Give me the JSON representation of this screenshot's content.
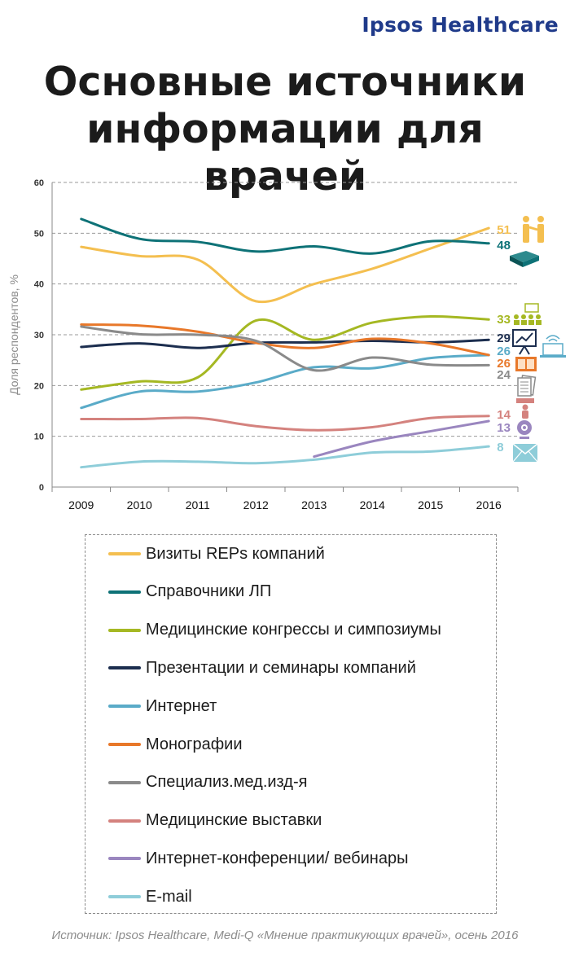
{
  "header": {
    "brand": "Ipsos Healthcare",
    "title_line1": "Основные источники",
    "title_line2": "информации для врачей"
  },
  "chart_data": {
    "type": "line",
    "x": [
      "2009",
      "2010",
      "2011",
      "2012",
      "2013",
      "2014",
      "2015",
      "2016"
    ],
    "ylabel": "Доля респондентов, %",
    "ylim": [
      0,
      60
    ],
    "yticks": [
      0,
      10,
      20,
      30,
      40,
      50,
      60
    ],
    "grid": true,
    "legend_position": "bottom",
    "series": [
      {
        "name": "Визиты REPs компаний",
        "color": "#f4bf50",
        "values": [
          47.3,
          45.5,
          44.8,
          36.6,
          40.0,
          43.0,
          47.0,
          51
        ],
        "end_label": "51",
        "icon": "handshake-icon"
      },
      {
        "name": "Справочники ЛП",
        "color": "#0e7277",
        "values": [
          52.8,
          48.9,
          48.3,
          46.4,
          47.4,
          46.0,
          48.4,
          48
        ],
        "end_label": "48",
        "icon": "book-icon"
      },
      {
        "name": "Медицинские конгрессы и симпозиумы",
        "color": "#a5b823",
        "values": [
          19.2,
          20.8,
          21.6,
          32.8,
          29.0,
          32.4,
          33.6,
          33
        ],
        "end_label": "33",
        "icon": "audience-icon"
      },
      {
        "name": "Презентации и семинары компаний",
        "color": "#1c2e4f",
        "values": [
          27.6,
          28.3,
          27.4,
          28.4,
          28.5,
          28.8,
          28.5,
          29
        ],
        "end_label": "29",
        "icon": "presentation-icon"
      },
      {
        "name": "Интернет",
        "color": "#5aabc8",
        "values": [
          15.6,
          18.8,
          18.8,
          20.6,
          23.6,
          23.4,
          25.4,
          26
        ],
        "end_label": "26",
        "icon": "laptop-wifi-icon"
      },
      {
        "name": "Монографии",
        "color": "#e8782a",
        "values": [
          32.0,
          31.8,
          30.6,
          28.4,
          27.4,
          29.2,
          28.3,
          26
        ],
        "end_label": "26",
        "icon": "open-book-icon"
      },
      {
        "name": "Специализ.мед.изд-я",
        "color": "#8a8a8a",
        "values": [
          31.6,
          30.1,
          30.0,
          28.8,
          23.0,
          25.5,
          24.1,
          24
        ],
        "end_label": "24",
        "icon": "magazine-icon"
      },
      {
        "name": "Медицинские выставки",
        "color": "#d4827e",
        "values": [
          13.4,
          13.4,
          13.6,
          12.0,
          11.2,
          11.8,
          13.6,
          14
        ],
        "end_label": "14",
        "icon": "exhibition-icon"
      },
      {
        "name": "Интернет-конференции/ вебинары",
        "color": "#9a86bf",
        "values": [
          null,
          null,
          null,
          null,
          6.0,
          9.0,
          11.0,
          13
        ],
        "end_label": "13",
        "icon": "webcam-icon"
      },
      {
        "name": "E-mail",
        "color": "#8ecdd9",
        "values": [
          3.9,
          5.0,
          5.0,
          4.7,
          5.4,
          6.8,
          7.0,
          8
        ],
        "end_label": "8",
        "icon": "envelope-icon"
      }
    ]
  },
  "footer": {
    "source": "Источник: Ipsos Healthcare, Medi-Q «Мнение практикующих  врачей», осень 2016"
  }
}
